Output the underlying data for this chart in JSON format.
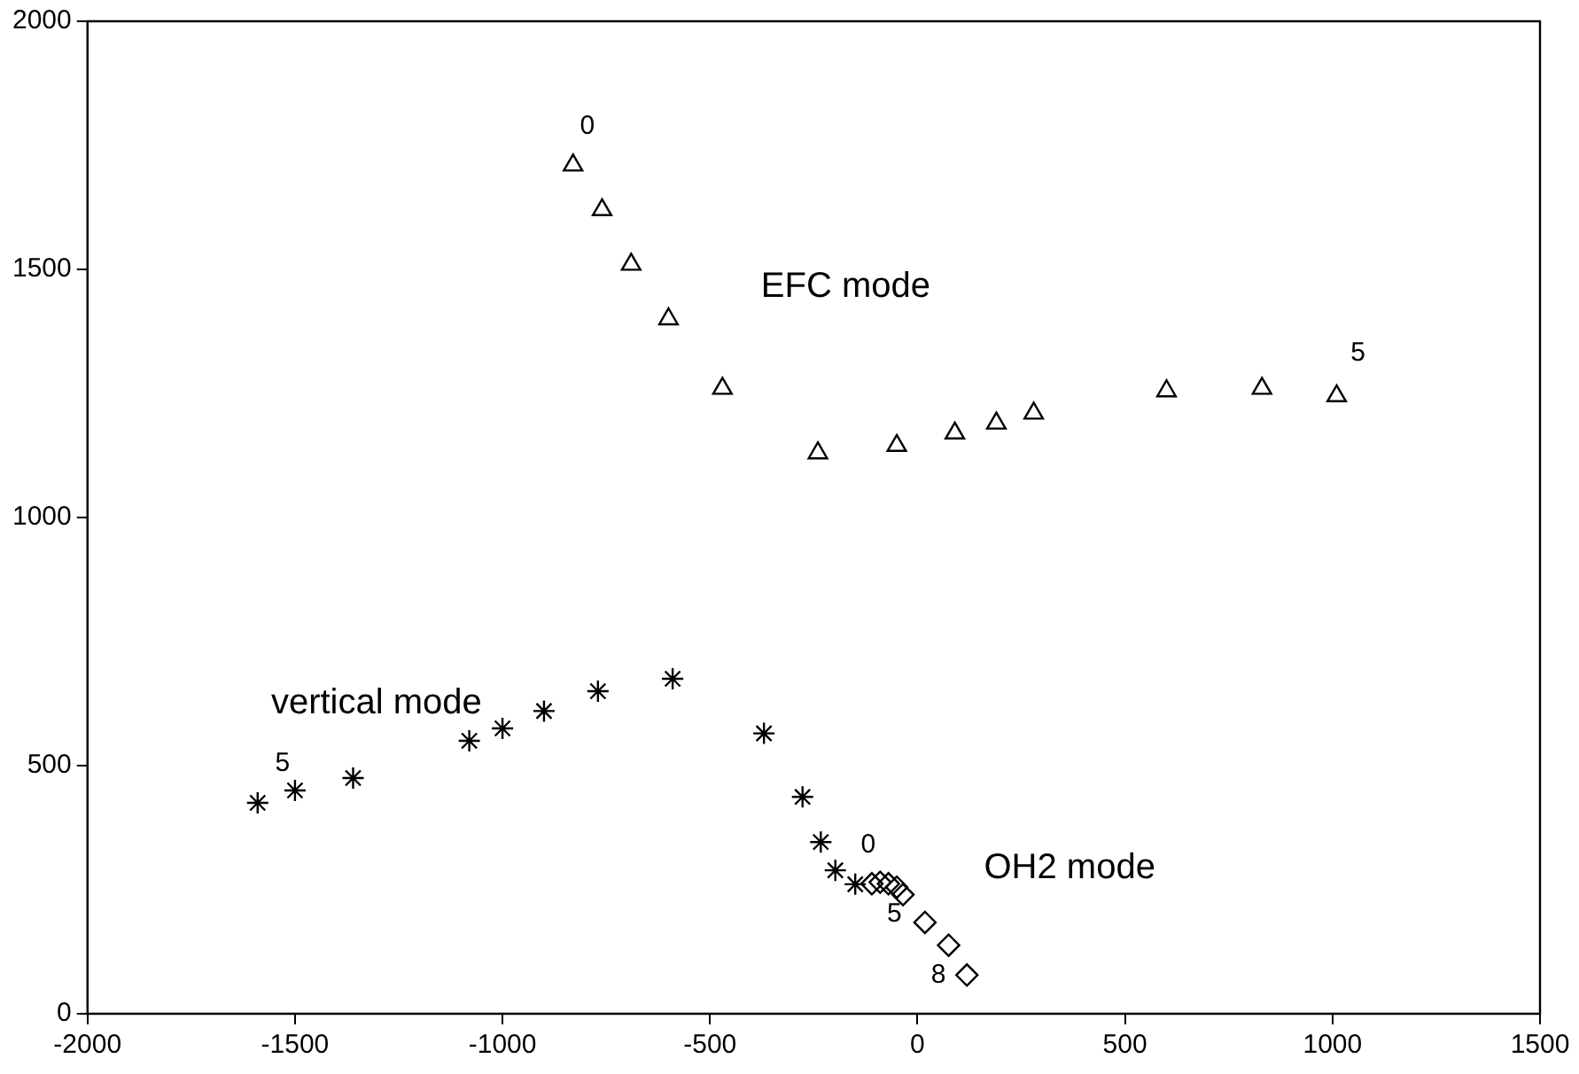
{
  "chart_data": {
    "type": "scatter",
    "xlim": [
      -2000,
      1500
    ],
    "ylim": [
      0,
      2000
    ],
    "xticks": [
      -2000,
      -1500,
      -1000,
      -500,
      0,
      500,
      1000,
      1500
    ],
    "yticks": [
      0,
      500,
      1000,
      1500,
      2000
    ],
    "grid": false,
    "legend": false,
    "series": [
      {
        "name": "EFC mode",
        "color": "#000000",
        "marker": "triangle",
        "x": [
          -830,
          -760,
          -690,
          -600,
          -470,
          -240,
          -50,
          90,
          190,
          280,
          600,
          830,
          1010
        ],
        "values": [
          1710,
          1620,
          1510,
          1400,
          1260,
          1130,
          1145,
          1170,
          1190,
          1210,
          1255,
          1260,
          1245
        ]
      },
      {
        "name": "vertical mode",
        "color": "#000000",
        "marker": "cross",
        "x": [
          -1590,
          -1500,
          -1360,
          -1080,
          -1000,
          -900,
          -770,
          -590,
          -370,
          -277,
          -233,
          -198,
          -150
        ],
        "values": [
          425,
          450,
          475,
          550,
          575,
          610,
          650,
          675,
          565,
          437,
          346,
          289,
          261
        ]
      },
      {
        "name": "OH2 mode",
        "color": "#000000",
        "marker": "diamond",
        "x": [
          -110,
          -90,
          -70,
          -50,
          -35,
          18,
          75,
          119
        ],
        "values": [
          262,
          265,
          262,
          255,
          240,
          184,
          138,
          78
        ]
      }
    ],
    "annotations": [
      {
        "text": "0",
        "x": -830,
        "y": 1710
      },
      {
        "text": "5",
        "x": 1010,
        "y": 1245
      },
      {
        "text": "5",
        "x": -1590,
        "y": 425
      },
      {
        "text": "0",
        "x": -110,
        "y": 262
      },
      {
        "text": "5",
        "x": -90,
        "y": 265
      },
      {
        "text": "8",
        "x": 119,
        "y": 78
      }
    ]
  }
}
